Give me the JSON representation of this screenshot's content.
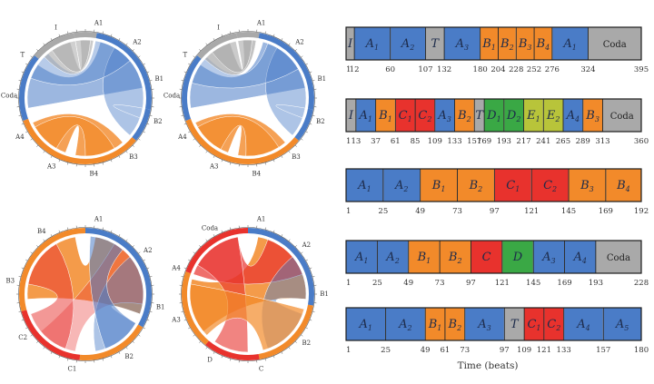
{
  "colors": {
    "A": "#4a7cc7",
    "B": "#f28a2a",
    "C": "#e8322d",
    "D": "#3aa845",
    "E": "#b8c43a",
    "T": "#a9a9a9",
    "I": "#a9a9a9",
    "Coda": "#a9a9a9"
  },
  "chord_diagrams": [
    {
      "labels": [
        "A1",
        "A2",
        "B1",
        "B2",
        "B3",
        "B4",
        "A3",
        "A4",
        "Coda",
        "T",
        "I"
      ]
    },
    {
      "labels": [
        "A1",
        "A2",
        "B1",
        "B2",
        "B3",
        "B4",
        "A3",
        "A4",
        "Coda",
        "T",
        "I"
      ]
    },
    {
      "labels": [
        "A1",
        "A2",
        "B1",
        "B2",
        "C1",
        "C2",
        "B3",
        "B4"
      ]
    },
    {
      "labels": [
        "A1",
        "A2",
        "B1",
        "B2",
        "C",
        "D",
        "A3",
        "A4",
        "Coda"
      ]
    }
  ],
  "timelines": [
    {
      "segments": [
        {
          "t": "I",
          "sub": "",
          "start": 1,
          "end": 12
        },
        {
          "t": "A",
          "sub": "1",
          "start": 12,
          "end": 60
        },
        {
          "t": "A",
          "sub": "2",
          "start": 60,
          "end": 107
        },
        {
          "t": "T",
          "sub": "",
          "start": 107,
          "end": 132
        },
        {
          "t": "A",
          "sub": "3",
          "start": 132,
          "end": 180
        },
        {
          "t": "B",
          "sub": "1",
          "start": 180,
          "end": 204
        },
        {
          "t": "B",
          "sub": "2",
          "start": 204,
          "end": 228
        },
        {
          "t": "B",
          "sub": "3",
          "start": 228,
          "end": 252
        },
        {
          "t": "B",
          "sub": "4",
          "start": 252,
          "end": 276
        },
        {
          "t": "A",
          "sub": "1",
          "start": 276,
          "end": 324
        },
        {
          "t": "Coda",
          "sub": "",
          "start": 324,
          "end": 395
        }
      ],
      "ticks": [
        "1",
        "12",
        "60",
        "107",
        "132",
        "180",
        "204",
        "228",
        "252",
        "276",
        "324",
        "395"
      ]
    },
    {
      "segments": [
        {
          "t": "I",
          "sub": "",
          "start": 1,
          "end": 13
        },
        {
          "t": "A",
          "sub": "1",
          "start": 13,
          "end": 37
        },
        {
          "t": "B",
          "sub": "1",
          "start": 37,
          "end": 61
        },
        {
          "t": "C",
          "sub": "1",
          "start": 61,
          "end": 85
        },
        {
          "t": "C",
          "sub": "2",
          "start": 85,
          "end": 109
        },
        {
          "t": "A",
          "sub": "3",
          "start": 109,
          "end": 133
        },
        {
          "t": "B",
          "sub": "2",
          "start": 133,
          "end": 157
        },
        {
          "t": "T",
          "sub": "",
          "start": 157,
          "end": 169
        },
        {
          "t": "D",
          "sub": "1",
          "start": 169,
          "end": 193
        },
        {
          "t": "D",
          "sub": "2",
          "start": 193,
          "end": 217
        },
        {
          "t": "E",
          "sub": "1",
          "start": 217,
          "end": 241
        },
        {
          "t": "E",
          "sub": "2",
          "start": 241,
          "end": 265
        },
        {
          "t": "A",
          "sub": "4",
          "start": 265,
          "end": 289
        },
        {
          "t": "B",
          "sub": "3",
          "start": 289,
          "end": 313
        },
        {
          "t": "Coda",
          "sub": "",
          "start": 313,
          "end": 360
        }
      ],
      "ticks": [
        "1",
        "13",
        "37",
        "61",
        "85",
        "109",
        "133",
        "157",
        "169",
        "193",
        "217",
        "241",
        "265",
        "289",
        "313",
        "360"
      ]
    },
    {
      "segments": [
        {
          "t": "A",
          "sub": "1",
          "start": 1,
          "end": 25
        },
        {
          "t": "A",
          "sub": "2",
          "start": 25,
          "end": 49
        },
        {
          "t": "B",
          "sub": "1",
          "start": 49,
          "end": 73
        },
        {
          "t": "B",
          "sub": "2",
          "start": 73,
          "end": 97
        },
        {
          "t": "C",
          "sub": "1",
          "start": 97,
          "end": 121
        },
        {
          "t": "C",
          "sub": "2",
          "start": 121,
          "end": 145
        },
        {
          "t": "B",
          "sub": "3",
          "start": 145,
          "end": 169
        },
        {
          "t": "B",
          "sub": "4",
          "start": 169,
          "end": 192
        }
      ],
      "ticks": [
        "1",
        "25",
        "49",
        "73",
        "97",
        "121",
        "145",
        "169",
        "192"
      ]
    },
    {
      "segments": [
        {
          "t": "A",
          "sub": "1",
          "start": 1,
          "end": 25
        },
        {
          "t": "A",
          "sub": "2",
          "start": 25,
          "end": 49
        },
        {
          "t": "B",
          "sub": "1",
          "start": 49,
          "end": 73
        },
        {
          "t": "B",
          "sub": "2",
          "start": 73,
          "end": 97
        },
        {
          "t": "C",
          "sub": "",
          "start": 97,
          "end": 121
        },
        {
          "t": "D",
          "sub": "",
          "start": 121,
          "end": 145
        },
        {
          "t": "A",
          "sub": "3",
          "start": 145,
          "end": 169
        },
        {
          "t": "A",
          "sub": "4",
          "start": 169,
          "end": 193
        },
        {
          "t": "Coda",
          "sub": "",
          "start": 193,
          "end": 228
        }
      ],
      "ticks": [
        "1",
        "25",
        "49",
        "73",
        "97",
        "121",
        "145",
        "169",
        "193",
        "228"
      ]
    },
    {
      "segments": [
        {
          "t": "A",
          "sub": "1",
          "start": 1,
          "end": 25
        },
        {
          "t": "A",
          "sub": "2",
          "start": 25,
          "end": 49
        },
        {
          "t": "B",
          "sub": "1",
          "start": 49,
          "end": 61
        },
        {
          "t": "B",
          "sub": "2",
          "start": 61,
          "end": 73
        },
        {
          "t": "A",
          "sub": "3",
          "start": 73,
          "end": 97
        },
        {
          "t": "T",
          "sub": "",
          "start": 97,
          "end": 109
        },
        {
          "t": "C",
          "sub": "1",
          "start": 109,
          "end": 121
        },
        {
          "t": "C",
          "sub": "2",
          "start": 121,
          "end": 133
        },
        {
          "t": "A",
          "sub": "4",
          "start": 133,
          "end": 157
        },
        {
          "t": "A",
          "sub": "5",
          "start": 157,
          "end": 180
        }
      ],
      "ticks": [
        "1",
        "25",
        "49",
        "61",
        "73",
        "97",
        "109",
        "121",
        "133",
        "157",
        "180"
      ]
    }
  ],
  "axis_title": "Time (beats)"
}
